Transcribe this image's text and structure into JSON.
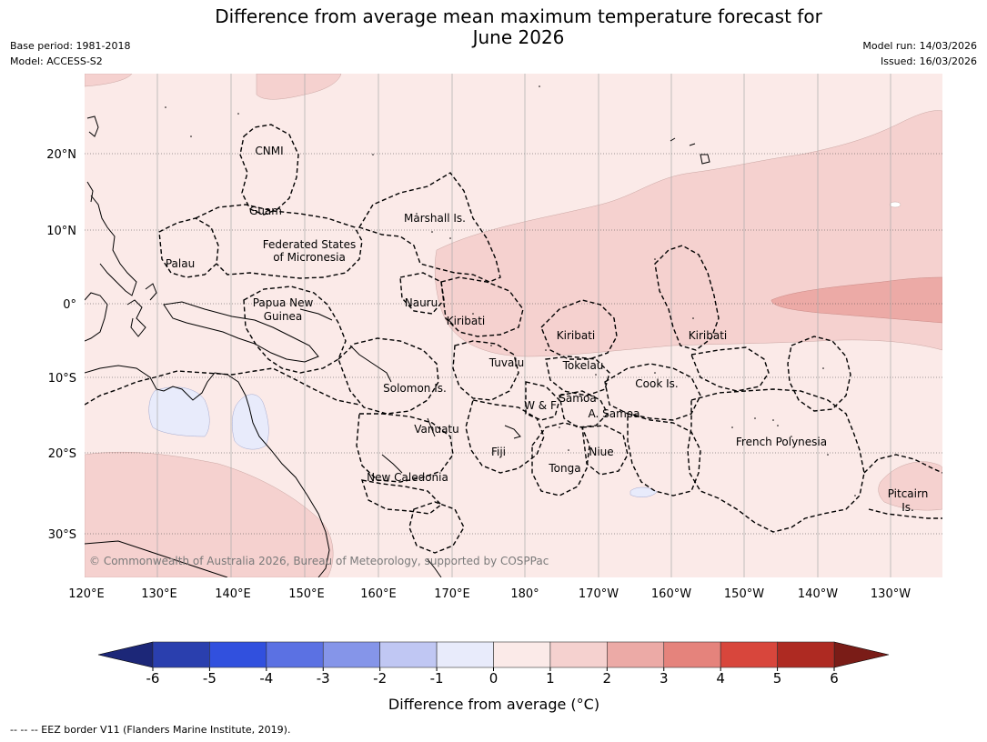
{
  "header": {
    "title_line1": "Difference from average mean maximum temperature forecast for",
    "title_line2": "June 2026",
    "base_period": "Base period: 1981-2018",
    "model": "Model: ACCESS-S2",
    "model_run": "Model run: 14/03/2026",
    "issued": "Issued: 16/03/2026"
  },
  "map": {
    "lat_ticks": [
      "20°N",
      "10°N",
      "0°",
      "10°S",
      "20°S",
      "30°S"
    ],
    "lon_ticks": [
      "120°E",
      "130°E",
      "140°E",
      "150°E",
      "160°E",
      "170°E",
      "180°",
      "170°W",
      "160°W",
      "150°W",
      "140°W",
      "130°W"
    ],
    "regions": {
      "cnmi": "CNMI",
      "guam": "Guam",
      "palau": "Palau",
      "fsm_1": "Federated States",
      "fsm_2": "of Micronesia",
      "marshall": "Marshall Is.",
      "nauru": "Nauru",
      "png_1": "Papua New",
      "png_2": "Guinea",
      "kiribati_w": "Kiribati",
      "kiribati_c": "Kiribati",
      "kiribati_e": "Kiribati",
      "tuvalu": "Tuvalu",
      "tokelau": "Tokelau",
      "solomon": "Solomon Is.",
      "samoa": "Samoa",
      "wf": "W & F",
      "asamoa": "A. Samoa",
      "cook": "Cook Is.",
      "vanuatu": "Vanuatu",
      "fiji": "Fiji",
      "niue": "Niue",
      "tonga": "Tonga",
      "new_caledonia": "New Caledonia",
      "french_polynesia": "French Polynesia",
      "pitcairn_1": "Pitcairn",
      "pitcairn_2": "Is."
    },
    "copyright": "© Commonwealth of Australia 2026, Bureau of Meteorology, supported by COSPPac"
  },
  "colorbar": {
    "ticks": [
      "-6",
      "-5",
      "-4",
      "-3",
      "-2",
      "-1",
      "0",
      "1",
      "2",
      "3",
      "4",
      "5",
      "6"
    ],
    "colors": [
      "#2a3fae",
      "#3150de",
      "#5b71e3",
      "#8595e9",
      "#c0c7f3",
      "#e8ebfb",
      "#fbeae8",
      "#f5d1cf",
      "#ecaaa6",
      "#e5837c",
      "#d8463c",
      "#ae2a22"
    ],
    "low_extend_color": "#1c2778",
    "high_extend_color": "#7a1c17",
    "label": "Difference from average (°C)"
  },
  "footer": {
    "eez_note": "--  --  -- EEZ border V11 (Flanders Marine Institute, 2019)."
  }
}
